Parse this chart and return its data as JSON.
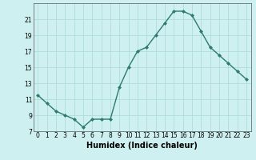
{
  "x": [
    0,
    1,
    2,
    3,
    4,
    5,
    6,
    7,
    8,
    9,
    10,
    11,
    12,
    13,
    14,
    15,
    16,
    17,
    18,
    19,
    20,
    21,
    22,
    23
  ],
  "y": [
    11.5,
    10.5,
    9.5,
    9.0,
    8.5,
    7.5,
    8.5,
    8.5,
    8.5,
    12.5,
    15.0,
    17.0,
    17.5,
    19.0,
    20.5,
    22.0,
    22.0,
    21.5,
    19.5,
    17.5,
    16.5,
    15.5,
    14.5,
    13.5
  ],
  "line_color": "#2d7a6e",
  "marker": "D",
  "markersize": 2.0,
  "linewidth": 1.0,
  "background_color": "#cef0f0",
  "grid_color": "#a8d8d8",
  "xlabel": "Humidex (Indice chaleur)",
  "xlabel_fontsize": 7,
  "ylim": [
    7,
    23
  ],
  "xlim": [
    -0.5,
    23.5
  ],
  "yticks": [
    7,
    9,
    11,
    13,
    15,
    17,
    19,
    21
  ],
  "xtick_labels": [
    "0",
    "1",
    "2",
    "3",
    "4",
    "5",
    "6",
    "7",
    "8",
    "9",
    "10",
    "11",
    "12",
    "13",
    "14",
    "15",
    "16",
    "17",
    "18",
    "19",
    "20",
    "21",
    "22",
    "23"
  ],
  "tick_fontsize": 5.5
}
